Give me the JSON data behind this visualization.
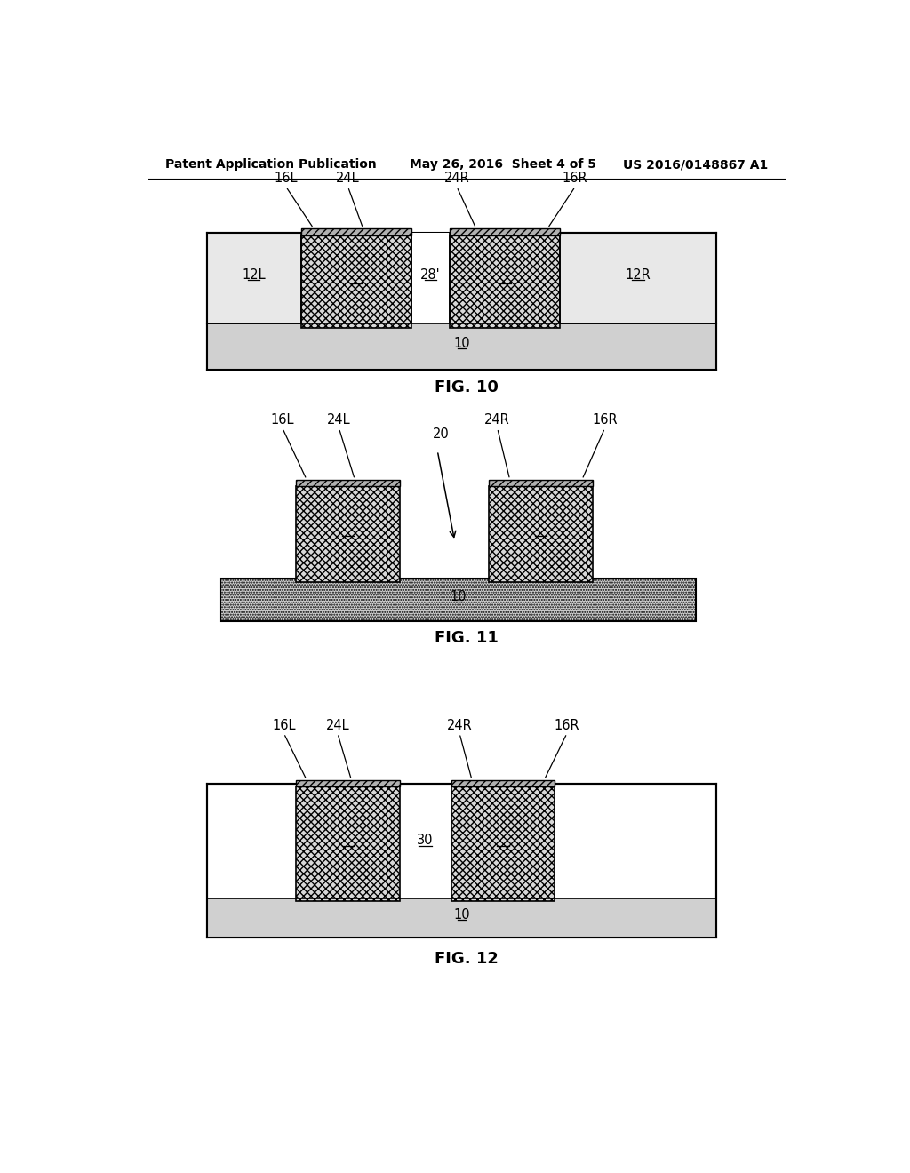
{
  "header_left": "Patent Application Publication",
  "header_center": "May 26, 2016  Sheet 4 of 5",
  "header_right": "US 2016/0148867 A1",
  "fig10_label": "FIG. 10",
  "fig11_label": "FIG. 11",
  "fig12_label": "FIG. 12",
  "background": "#ffffff"
}
